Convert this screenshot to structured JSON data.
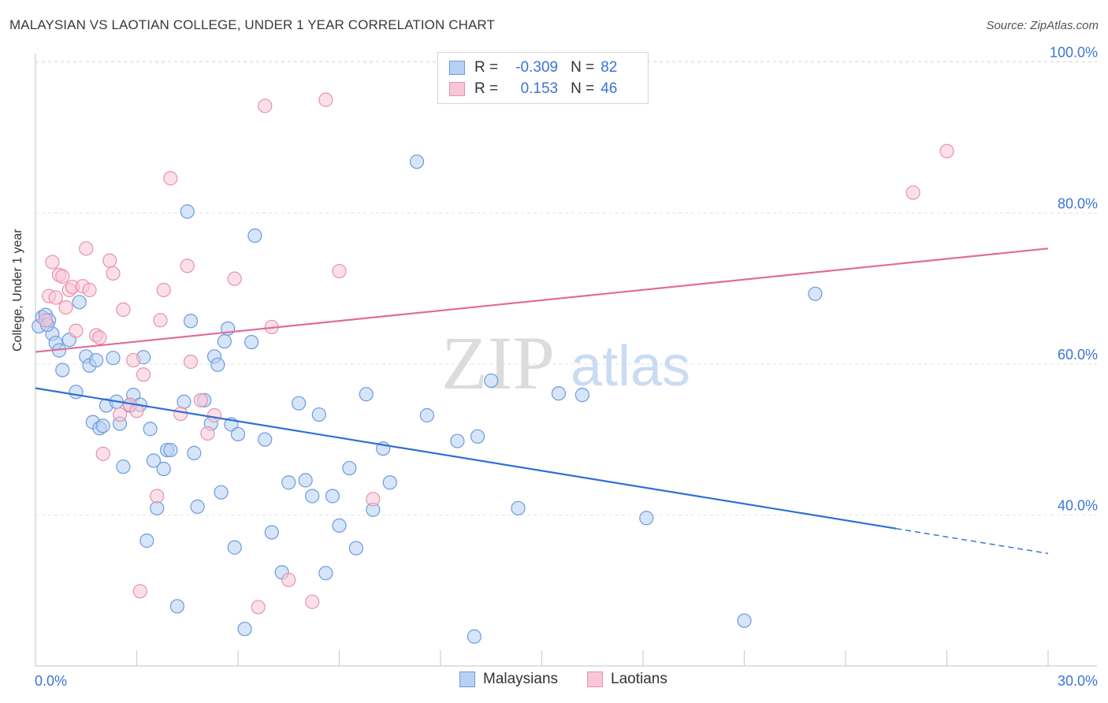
{
  "header": {
    "title": "MALAYSIAN VS LAOTIAN COLLEGE, UNDER 1 YEAR CORRELATION CHART",
    "source": "Source: ZipAtlas.com"
  },
  "watermark": {
    "zip": "ZIP",
    "atlas": "atlas"
  },
  "legend": {
    "r_label": "R =",
    "n_label": "N =",
    "rows": [
      {
        "r": "-0.309",
        "n": "82",
        "fill": "#b7d0f3",
        "stroke": "#6b9be0"
      },
      {
        "r": "0.153",
        "n": "46",
        "fill": "#f9c6d6",
        "stroke": "#e891ad"
      }
    ]
  },
  "bottom_legend": [
    {
      "label": "Malaysians",
      "fill": "#b7d0f3",
      "stroke": "#6b9be0"
    },
    {
      "label": "Laotians",
      "fill": "#f9c6d6",
      "stroke": "#e891ad"
    }
  ],
  "chart_data": {
    "type": "scatter",
    "title": "MALAYSIAN VS LAOTIAN COLLEGE, UNDER 1 YEAR CORRELATION CHART",
    "xlabel": "",
    "ylabel": "College, Under 1 year",
    "xlim": [
      0,
      30
    ],
    "ylim": [
      20,
      103
    ],
    "x_tick_labels": [
      "0.0%",
      "30.0%"
    ],
    "y_ticks": [
      40,
      60,
      80,
      100
    ],
    "y_tick_labels": [
      "40.0%",
      "60.0%",
      "80.0%",
      "100.0%"
    ],
    "grid": true,
    "legend_position": "top-center",
    "series": [
      {
        "name": "Malaysians",
        "color": "#6b9be0",
        "fill": "#b7d0f3",
        "trend_color": "#2f6fd4",
        "trend": {
          "x0": 0,
          "y0": 56.8,
          "x1": 25.5,
          "y1": 38.2,
          "dash_to_x": 30,
          "dash_to_y": 34.9
        },
        "points": [
          [
            0.1,
            65.0
          ],
          [
            0.2,
            66.2
          ],
          [
            0.3,
            66.5
          ],
          [
            0.4,
            65.8
          ],
          [
            0.5,
            64.0
          ],
          [
            0.6,
            62.8
          ],
          [
            0.7,
            61.8
          ],
          [
            0.8,
            59.2
          ],
          [
            1.0,
            63.2
          ],
          [
            1.2,
            56.3
          ],
          [
            1.3,
            68.2
          ],
          [
            1.5,
            61.0
          ],
          [
            1.6,
            59.8
          ],
          [
            1.7,
            52.3
          ],
          [
            1.8,
            60.5
          ],
          [
            1.9,
            51.5
          ],
          [
            2.0,
            51.8
          ],
          [
            2.1,
            54.5
          ],
          [
            2.3,
            60.8
          ],
          [
            2.4,
            55.0
          ],
          [
            2.5,
            52.1
          ],
          [
            2.6,
            46.4
          ],
          [
            2.8,
            54.5
          ],
          [
            2.9,
            55.9
          ],
          [
            3.1,
            54.6
          ],
          [
            3.2,
            60.9
          ],
          [
            3.3,
            36.6
          ],
          [
            3.4,
            51.4
          ],
          [
            3.5,
            47.2
          ],
          [
            3.6,
            40.9
          ],
          [
            3.8,
            46.1
          ],
          [
            3.9,
            48.6
          ],
          [
            4.0,
            48.6
          ],
          [
            4.2,
            27.9
          ],
          [
            4.4,
            55.0
          ],
          [
            4.5,
            80.2
          ],
          [
            4.6,
            65.7
          ],
          [
            4.7,
            48.2
          ],
          [
            4.8,
            41.1
          ],
          [
            5.0,
            55.2
          ],
          [
            5.2,
            52.1
          ],
          [
            5.3,
            61.0
          ],
          [
            5.4,
            59.9
          ],
          [
            5.5,
            43.0
          ],
          [
            5.6,
            63.0
          ],
          [
            5.7,
            64.7
          ],
          [
            5.8,
            52.0
          ],
          [
            5.9,
            35.7
          ],
          [
            6.0,
            50.7
          ],
          [
            6.2,
            24.9
          ],
          [
            6.4,
            62.9
          ],
          [
            6.5,
            77.0
          ],
          [
            6.8,
            50.0
          ],
          [
            7.0,
            37.7
          ],
          [
            7.3,
            32.4
          ],
          [
            7.5,
            44.3
          ],
          [
            7.8,
            54.8
          ],
          [
            8.0,
            44.6
          ],
          [
            8.2,
            42.5
          ],
          [
            8.4,
            53.3
          ],
          [
            8.6,
            32.3
          ],
          [
            8.8,
            42.5
          ],
          [
            9.0,
            38.6
          ],
          [
            9.3,
            46.2
          ],
          [
            9.5,
            35.6
          ],
          [
            9.8,
            56.0
          ],
          [
            10.0,
            40.7
          ],
          [
            10.3,
            48.8
          ],
          [
            10.5,
            44.3
          ],
          [
            11.3,
            86.8
          ],
          [
            11.6,
            53.2
          ],
          [
            12.5,
            49.8
          ],
          [
            13.0,
            23.9
          ],
          [
            13.1,
            50.4
          ],
          [
            13.5,
            57.8
          ],
          [
            14.3,
            40.9
          ],
          [
            15.5,
            56.1
          ],
          [
            16.2,
            55.9
          ],
          [
            18.1,
            39.6
          ],
          [
            21.0,
            26.0
          ],
          [
            23.1,
            69.3
          ],
          [
            0.35,
            65.2
          ]
        ]
      },
      {
        "name": "Laotians",
        "color": "#e891ad",
        "fill": "#f9c6d6",
        "trend_color": "#e06d97",
        "trend": {
          "x0": 0,
          "y0": 61.6,
          "x1": 30,
          "y1": 75.3
        },
        "points": [
          [
            0.3,
            65.8
          ],
          [
            0.4,
            69.0
          ],
          [
            0.5,
            73.5
          ],
          [
            0.6,
            68.8
          ],
          [
            0.7,
            71.8
          ],
          [
            0.8,
            71.6
          ],
          [
            0.9,
            67.5
          ],
          [
            1.0,
            69.8
          ],
          [
            1.1,
            70.2
          ],
          [
            1.2,
            64.4
          ],
          [
            1.4,
            70.3
          ],
          [
            1.5,
            75.3
          ],
          [
            1.6,
            69.8
          ],
          [
            1.8,
            63.8
          ],
          [
            1.9,
            63.5
          ],
          [
            2.0,
            48.1
          ],
          [
            2.2,
            73.7
          ],
          [
            2.3,
            72.0
          ],
          [
            2.5,
            53.3
          ],
          [
            2.6,
            67.2
          ],
          [
            2.8,
            54.6
          ],
          [
            2.9,
            60.5
          ],
          [
            3.0,
            53.8
          ],
          [
            3.1,
            29.9
          ],
          [
            3.2,
            58.6
          ],
          [
            3.6,
            42.5
          ],
          [
            3.7,
            65.8
          ],
          [
            3.8,
            69.8
          ],
          [
            4.0,
            84.6
          ],
          [
            4.3,
            53.4
          ],
          [
            4.5,
            73.0
          ],
          [
            4.6,
            60.3
          ],
          [
            4.9,
            55.2
          ],
          [
            5.1,
            50.8
          ],
          [
            5.3,
            53.2
          ],
          [
            5.9,
            71.3
          ],
          [
            6.6,
            27.8
          ],
          [
            6.8,
            94.2
          ],
          [
            7.0,
            64.9
          ],
          [
            7.5,
            31.4
          ],
          [
            8.2,
            28.5
          ],
          [
            8.6,
            95.0
          ],
          [
            9.0,
            72.3
          ],
          [
            10.0,
            42.1
          ],
          [
            26.0,
            82.7
          ],
          [
            27.0,
            88.2
          ]
        ]
      }
    ]
  }
}
